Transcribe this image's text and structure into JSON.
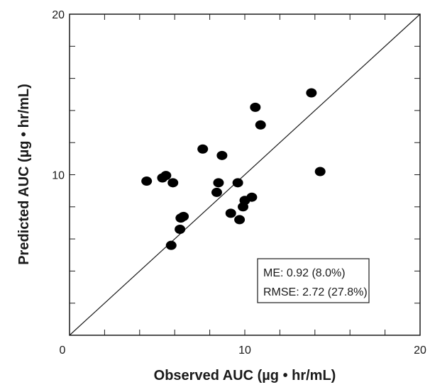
{
  "chart_data": {
    "type": "scatter",
    "xlabel": "Observed AUC (µg • hr/mL)",
    "ylabel": "Predicted AUC (µg • hr/mL)",
    "xlim": [
      0,
      20
    ],
    "ylim": [
      0,
      20
    ],
    "x_tick_labels": [
      {
        "value": 0,
        "label": "0"
      },
      {
        "value": 10,
        "label": "10"
      },
      {
        "value": 20,
        "label": "20"
      }
    ],
    "y_tick_labels": [
      {
        "value": 10,
        "label": "10"
      },
      {
        "value": 20,
        "label": "20"
      }
    ],
    "minor_tick_step": 2,
    "grid": false,
    "reference_line": {
      "type": "identity",
      "from": [
        0,
        0
      ],
      "to": [
        20,
        20
      ]
    },
    "annotation_lines": [
      "ME: 0.92 (8.0%)",
      "RMSE: 2.72 (27.8%)"
    ],
    "points": [
      {
        "x": 4.4,
        "y": 9.6
      },
      {
        "x": 5.3,
        "y": 9.8
      },
      {
        "x": 5.5,
        "y": 9.95
      },
      {
        "x": 5.9,
        "y": 9.5
      },
      {
        "x": 5.8,
        "y": 5.6
      },
      {
        "x": 6.3,
        "y": 6.6
      },
      {
        "x": 6.35,
        "y": 7.3
      },
      {
        "x": 6.5,
        "y": 7.4
      },
      {
        "x": 7.6,
        "y": 11.6
      },
      {
        "x": 8.4,
        "y": 8.9
      },
      {
        "x": 8.5,
        "y": 9.5
      },
      {
        "x": 8.7,
        "y": 11.2
      },
      {
        "x": 9.2,
        "y": 7.6
      },
      {
        "x": 9.6,
        "y": 9.5
      },
      {
        "x": 9.7,
        "y": 7.2
      },
      {
        "x": 9.9,
        "y": 8.0
      },
      {
        "x": 10.0,
        "y": 8.4
      },
      {
        "x": 10.4,
        "y": 8.6
      },
      {
        "x": 10.6,
        "y": 14.2
      },
      {
        "x": 10.9,
        "y": 13.1
      },
      {
        "x": 13.8,
        "y": 15.1
      },
      {
        "x": 14.3,
        "y": 10.2
      }
    ]
  }
}
